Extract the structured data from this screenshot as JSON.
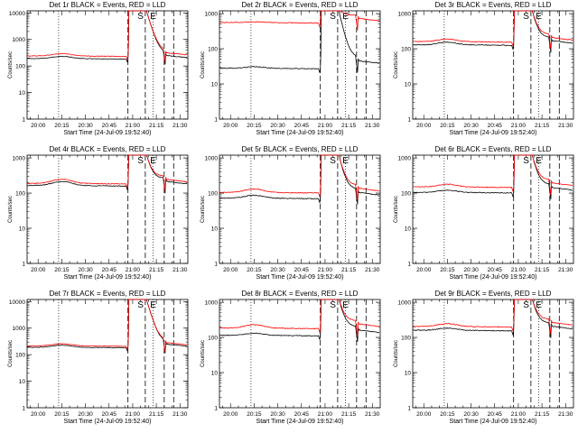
{
  "chart_data": [
    {
      "type": "line",
      "title": "Det 1r BLACK = Events, RED = LLD",
      "xlabel": "Start Time (24-Jul-09 19:52:40)",
      "ylabel": "Counts/sec",
      "x_tick_labels": [
        "20:00",
        "20:15",
        "20:30",
        "20:45",
        "21:00",
        "21:15",
        "21:30"
      ],
      "x_tick_minutes": [
        0,
        15,
        30,
        45,
        60,
        75,
        90
      ],
      "xlim_minutes": [
        -7,
        95
      ],
      "yscale": "log",
      "ylim": [
        1,
        12000
      ],
      "y_tick_labels": [
        "1",
        "10",
        "100",
        "1000",
        "10000"
      ],
      "markers": [
        {
          "label": "S",
          "minute": 65
        },
        {
          "label": "E",
          "minute": 73
        }
      ],
      "dotted_minutes": [
        13,
        73
      ],
      "dashed_minutes": [
        57,
        68,
        80,
        86
      ],
      "show_x_labels": true,
      "series": [
        {
          "name": "Events",
          "color": "#000000",
          "base": 190,
          "bump": 1.22,
          "post": 190
        },
        {
          "name": "LLD",
          "color": "#ff0000",
          "base": 240,
          "bump": 1.22,
          "post": 240
        }
      ]
    },
    {
      "type": "line",
      "title": "Det 2r BLACK = Events, RED = LLD",
      "xlabel": "Start Time (24-Jul-09 19:52:40)",
      "ylabel": "Counts/sec",
      "x_tick_labels": [
        "20:00",
        "20:15",
        "20:30",
        "20:45",
        "21:00",
        "21:15",
        "21:30"
      ],
      "x_tick_minutes": [
        0,
        15,
        30,
        45,
        60,
        75,
        90
      ],
      "xlim_minutes": [
        -7,
        95
      ],
      "yscale": "log",
      "ylim": [
        1,
        1200
      ],
      "y_tick_labels": [
        "1",
        "10",
        "100",
        "1000"
      ],
      "markers": [
        {
          "label": "S",
          "minute": 65
        },
        {
          "label": "E",
          "minute": 73
        }
      ],
      "dotted_minutes": [
        13,
        73
      ],
      "dashed_minutes": [
        57,
        68,
        80,
        86
      ],
      "show_x_labels": true,
      "series": [
        {
          "name": "Events",
          "color": "#000000",
          "base": 28,
          "bump": 1.1,
          "post": 35
        },
        {
          "name": "LLD",
          "color": "#ff0000",
          "base": 560,
          "bump": 1.04,
          "post": 560
        }
      ]
    },
    {
      "type": "line",
      "title": "Det 3r BLACK = Events, RED = LLD",
      "xlabel": "Start Time (24-Jul-09 19:52:40)",
      "ylabel": "Counts/sec",
      "x_tick_labels": [
        "20:00",
        "20:15",
        "20:30",
        "20:45",
        "21:00",
        "21:15",
        "21:30"
      ],
      "x_tick_minutes": [
        0,
        15,
        30,
        45,
        60,
        75,
        90
      ],
      "xlim_minutes": [
        -7,
        95
      ],
      "yscale": "log",
      "ylim": [
        1,
        1200
      ],
      "y_tick_labels": [
        "1",
        "10",
        "100",
        "1000"
      ],
      "markers": [
        {
          "label": "S",
          "minute": 65
        },
        {
          "label": "E",
          "minute": 73
        }
      ],
      "dotted_minutes": [
        13,
        73
      ],
      "dashed_minutes": [
        57,
        68,
        80,
        86
      ],
      "show_x_labels": true,
      "series": [
        {
          "name": "Events",
          "color": "#000000",
          "base": 130,
          "bump": 1.18,
          "post": 130
        },
        {
          "name": "LLD",
          "color": "#ff0000",
          "base": 160,
          "bump": 1.18,
          "post": 160
        }
      ]
    },
    {
      "type": "line",
      "title": "Det 4r BLACK = Events, RED = LLD",
      "xlabel": "Start Time (24-Jul-09 19:52:40)",
      "ylabel": "Counts/sec",
      "x_tick_labels": [
        "20:00",
        "20:15",
        "20:30",
        "20:45",
        "21:00",
        "21:15",
        "21:30"
      ],
      "x_tick_minutes": [
        0,
        15,
        30,
        45,
        60,
        75,
        90
      ],
      "xlim_minutes": [
        -7,
        95
      ],
      "yscale": "log",
      "ylim": [
        1,
        1200
      ],
      "y_tick_labels": [
        "1",
        "10",
        "100",
        "1000"
      ],
      "markers": [
        {
          "label": "S",
          "minute": 65
        },
        {
          "label": "E",
          "minute": 73
        }
      ],
      "dotted_minutes": [
        13,
        73
      ],
      "dashed_minutes": [
        57,
        68,
        80,
        86
      ],
      "show_x_labels": true,
      "series": [
        {
          "name": "Events",
          "color": "#000000",
          "base": 165,
          "bump": 1.3,
          "post": 165
        },
        {
          "name": "LLD",
          "color": "#ff0000",
          "base": 190,
          "bump": 1.3,
          "post": 190
        }
      ]
    },
    {
      "type": "line",
      "title": "Det 5r BLACK = Events, RED = LLD",
      "xlabel": "Start Time (24-Jul-09 19:52:40)",
      "ylabel": "Counts/sec",
      "x_tick_labels": [
        "20:00",
        "20:15",
        "20:30",
        "20:45",
        "21:00",
        "21:15",
        "21:30"
      ],
      "x_tick_minutes": [
        0,
        15,
        30,
        45,
        60,
        75,
        90
      ],
      "xlim_minutes": [
        -7,
        95
      ],
      "yscale": "log",
      "ylim": [
        1,
        1200
      ],
      "y_tick_labels": [
        "1",
        "10",
        "100",
        "1000"
      ],
      "markers": [
        {
          "label": "S",
          "minute": 65
        },
        {
          "label": "E",
          "minute": 73
        }
      ],
      "dotted_minutes": [
        13,
        73
      ],
      "dashed_minutes": [
        57,
        68,
        80,
        86
      ],
      "show_x_labels": true,
      "series": [
        {
          "name": "Events",
          "color": "#000000",
          "base": 72,
          "bump": 1.2,
          "post": 80
        },
        {
          "name": "LLD",
          "color": "#ff0000",
          "base": 105,
          "bump": 1.25,
          "post": 105
        }
      ]
    },
    {
      "type": "line",
      "title": "Det 6r BLACK = Events, RED = LLD",
      "xlabel": "Start Time (24-Jul-09 19:52:40)",
      "ylabel": "Counts/sec",
      "x_tick_labels": [
        "20:00",
        "20:15",
        "20:30",
        "20:45",
        "21:00",
        "21:15",
        "21:30"
      ],
      "x_tick_minutes": [
        0,
        15,
        30,
        45,
        60,
        75,
        90
      ],
      "xlim_minutes": [
        -7,
        95
      ],
      "yscale": "log",
      "ylim": [
        1,
        1200
      ],
      "y_tick_labels": [
        "1",
        "10",
        "100",
        "1000"
      ],
      "markers": [
        {
          "label": "S",
          "minute": 65
        },
        {
          "label": "E",
          "minute": 73
        }
      ],
      "dotted_minutes": [
        13,
        73
      ],
      "dashed_minutes": [
        57,
        68,
        80,
        86
      ],
      "show_x_labels": true,
      "series": [
        {
          "name": "Events",
          "color": "#000000",
          "base": 105,
          "bump": 1.15,
          "post": 110
        },
        {
          "name": "LLD",
          "color": "#ff0000",
          "base": 150,
          "bump": 1.2,
          "post": 150
        }
      ]
    },
    {
      "type": "line",
      "title": "Det 7r BLACK = Events, RED = LLD",
      "xlabel": "Start Time (24-Jul-09 19:52:40)",
      "ylabel": "Counts/sec",
      "x_tick_labels": [
        "20:00",
        "20:15",
        "20:30",
        "20:45",
        "21:00",
        "21:15",
        "21:30"
      ],
      "x_tick_minutes": [
        0,
        15,
        30,
        45,
        60,
        75,
        90
      ],
      "xlim_minutes": [
        -7,
        95
      ],
      "yscale": "log",
      "ylim": [
        1,
        12000
      ],
      "y_tick_labels": [
        "1",
        "10",
        "100",
        "1000",
        "10000"
      ],
      "markers": [
        {
          "label": "S",
          "minute": 65
        },
        {
          "label": "E",
          "minute": 73
        }
      ],
      "dotted_minutes": [
        13,
        73
      ],
      "dashed_minutes": [
        57,
        68,
        80,
        86
      ],
      "show_x_labels": true,
      "series": [
        {
          "name": "Events",
          "color": "#000000",
          "base": 190,
          "bump": 1.2,
          "post": 190
        },
        {
          "name": "LLD",
          "color": "#ff0000",
          "base": 215,
          "bump": 1.2,
          "post": 215
        }
      ]
    },
    {
      "type": "line",
      "title": "Det 8r BLACK = Events, RED = LLD",
      "xlabel": "Start Time (24-Jul-09 19:52:40)",
      "ylabel": "Counts/sec",
      "x_tick_labels": [
        "20:00",
        "20:15",
        "20:30",
        "20:45",
        "21:00",
        "21:15",
        "21:30"
      ],
      "x_tick_minutes": [
        0,
        15,
        30,
        45,
        60,
        75,
        90
      ],
      "xlim_minutes": [
        -7,
        95
      ],
      "yscale": "log",
      "ylim": [
        1,
        1200
      ],
      "y_tick_labels": [
        "1",
        "10",
        "100",
        "1000"
      ],
      "markers": [
        {
          "label": "S",
          "minute": 65
        },
        {
          "label": "E",
          "minute": 73
        }
      ],
      "dotted_minutes": [
        13,
        73
      ],
      "dashed_minutes": [
        57,
        68,
        80,
        86
      ],
      "show_x_labels": true,
      "series": [
        {
          "name": "Events",
          "color": "#000000",
          "base": 115,
          "bump": 1.15,
          "post": 125
        },
        {
          "name": "LLD",
          "color": "#ff0000",
          "base": 185,
          "bump": 1.25,
          "post": 185
        }
      ]
    },
    {
      "type": "line",
      "title": "Det 9r BLACK = Events, RED = LLD",
      "xlabel": "Start Time (24-Jul-09 19:52:40)",
      "ylabel": "Counts/sec",
      "x_tick_labels": [
        "20:00",
        "20:15",
        "20:30",
        "20:45",
        "21:00",
        "21:15",
        "21:30"
      ],
      "x_tick_minutes": [
        0,
        15,
        30,
        45,
        60,
        75,
        90
      ],
      "xlim_minutes": [
        -7,
        95
      ],
      "yscale": "log",
      "ylim": [
        1,
        1200
      ],
      "y_tick_labels": [
        "1",
        "10",
        "100",
        "1000"
      ],
      "markers": [
        {
          "label": "S",
          "minute": 65
        },
        {
          "label": "E",
          "minute": 73
        }
      ],
      "dotted_minutes": [
        13,
        73
      ],
      "dashed_minutes": [
        57,
        68,
        80,
        86
      ],
      "show_x_labels": true,
      "series": [
        {
          "name": "Events",
          "color": "#000000",
          "base": 160,
          "bump": 1.15,
          "post": 160
        },
        {
          "name": "LLD",
          "color": "#ff0000",
          "base": 205,
          "bump": 1.2,
          "post": 205
        }
      ]
    }
  ]
}
